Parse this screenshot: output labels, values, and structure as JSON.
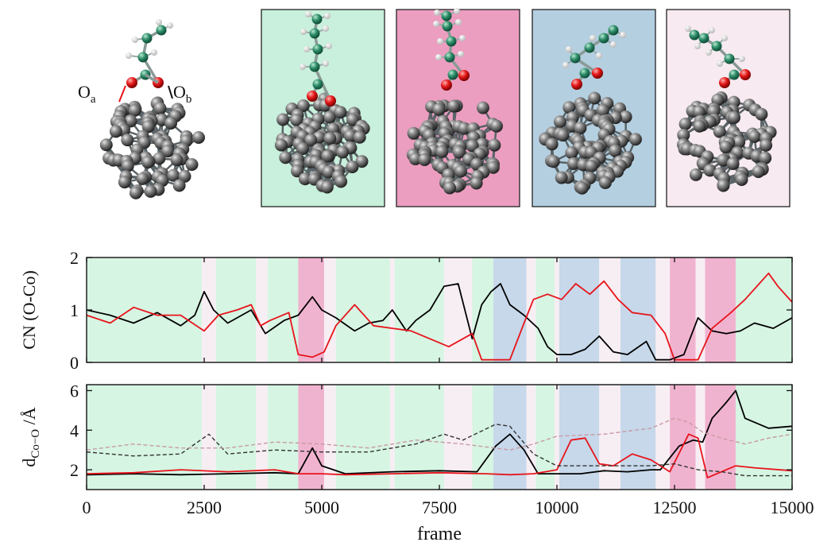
{
  "labels": {
    "oa": "O",
    "oa_sub": "a",
    "ob": "O",
    "ob_sub": "b"
  },
  "panel_colors": [
    "#c8f0dc",
    "#ec9ec0",
    "#b4cfe0",
    "#f7eaf0"
  ],
  "state_colors": {
    "green": "#d6f5e3",
    "white": "#f7eef3",
    "pink": "#f0b3cf",
    "blue": "#c6d8ea"
  },
  "state_bands": [
    {
      "from": 0,
      "to": 2450,
      "state": "green"
    },
    {
      "from": 2450,
      "to": 2750,
      "state": "white"
    },
    {
      "from": 2750,
      "to": 3600,
      "state": "green"
    },
    {
      "from": 3600,
      "to": 3850,
      "state": "white"
    },
    {
      "from": 3850,
      "to": 4500,
      "state": "green"
    },
    {
      "from": 4500,
      "to": 5050,
      "state": "pink"
    },
    {
      "from": 5050,
      "to": 5300,
      "state": "white"
    },
    {
      "from": 5300,
      "to": 6450,
      "state": "green"
    },
    {
      "from": 6450,
      "to": 6550,
      "state": "white"
    },
    {
      "from": 6550,
      "to": 7600,
      "state": "green"
    },
    {
      "from": 7600,
      "to": 8200,
      "state": "white"
    },
    {
      "from": 8200,
      "to": 8650,
      "state": "green"
    },
    {
      "from": 8650,
      "to": 9350,
      "state": "blue"
    },
    {
      "from": 9350,
      "to": 9550,
      "state": "white"
    },
    {
      "from": 9550,
      "to": 9950,
      "state": "green"
    },
    {
      "from": 9950,
      "to": 10050,
      "state": "white"
    },
    {
      "from": 10050,
      "to": 10900,
      "state": "blue"
    },
    {
      "from": 10900,
      "to": 11350,
      "state": "white"
    },
    {
      "from": 11350,
      "to": 12100,
      "state": "blue"
    },
    {
      "from": 12100,
      "to": 12400,
      "state": "white"
    },
    {
      "from": 12400,
      "to": 12950,
      "state": "pink"
    },
    {
      "from": 12950,
      "to": 13150,
      "state": "white"
    },
    {
      "from": 13150,
      "to": 13800,
      "state": "pink"
    },
    {
      "from": 13800,
      "to": 15000,
      "state": "green"
    }
  ],
  "chart_data": [
    {
      "type": "line",
      "ylabel": "CN (O-Co)",
      "xlim": [
        0,
        15000
      ],
      "ylim": [
        0,
        2
      ],
      "yticks": [
        "0",
        "1",
        "2"
      ],
      "series": [
        {
          "color": "#000000",
          "x": [
            0,
            500,
            1000,
            1500,
            2000,
            2300,
            2500,
            2700,
            3000,
            3500,
            3800,
            4200,
            4500,
            4800,
            5000,
            5300,
            5700,
            6000,
            6300,
            6500,
            6800,
            7000,
            7300,
            7600,
            7900,
            8200,
            8400,
            8600,
            8800,
            9000,
            9300,
            9600,
            9800,
            10000,
            10300,
            10600,
            10900,
            11200,
            11500,
            11900,
            12100,
            12400,
            12700,
            13000,
            13300,
            13600,
            13900,
            14200,
            14600,
            15000
          ],
          "y": [
            1.0,
            0.9,
            0.75,
            0.95,
            0.7,
            0.9,
            1.35,
            1.0,
            0.75,
            1.0,
            0.55,
            0.8,
            0.9,
            1.25,
            1.0,
            0.85,
            0.6,
            0.75,
            0.8,
            1.0,
            0.6,
            0.8,
            1.0,
            1.45,
            1.5,
            0.45,
            1.1,
            1.35,
            1.5,
            1.1,
            0.9,
            0.65,
            0.3,
            0.15,
            0.15,
            0.25,
            0.5,
            0.2,
            0.15,
            0.4,
            0.05,
            0.05,
            0.15,
            0.85,
            0.6,
            0.55,
            0.6,
            0.75,
            0.65,
            0.85
          ]
        },
        {
          "color": "#e8141b",
          "x": [
            0,
            500,
            1000,
            1500,
            2000,
            2500,
            2800,
            3200,
            3500,
            3700,
            3900,
            4300,
            4500,
            4800,
            5050,
            5300,
            5700,
            6100,
            6500,
            6900,
            7300,
            7700,
            8000,
            8200,
            8400,
            8700,
            9000,
            9300,
            9500,
            9800,
            10100,
            10400,
            10700,
            11000,
            11300,
            11600,
            12000,
            12300,
            12500,
            12800,
            13000,
            13300,
            13700,
            14000,
            14300,
            14500,
            14700,
            15000
          ],
          "y": [
            0.9,
            0.75,
            1.05,
            0.9,
            0.9,
            0.6,
            0.9,
            1.0,
            1.1,
            0.7,
            0.8,
            0.95,
            0.15,
            0.1,
            0.2,
            0.7,
            1.1,
            0.7,
            0.65,
            0.6,
            0.45,
            0.3,
            0.45,
            0.55,
            0.05,
            0.05,
            0.05,
            0.75,
            1.2,
            1.3,
            1.2,
            1.5,
            1.3,
            1.55,
            1.2,
            0.95,
            0.9,
            0.55,
            0.05,
            0.05,
            0.05,
            0.65,
            0.95,
            1.2,
            1.5,
            1.7,
            1.45,
            1.15
          ]
        }
      ]
    },
    {
      "type": "line",
      "ylabel": "d",
      "ylabel_sub": "Co−O",
      "ylabel_tail": " /Å",
      "xlabel": "frame",
      "xlim": [
        0,
        15000
      ],
      "ylim": [
        1,
        6.3
      ],
      "xticks": [
        "0",
        "2500",
        "5000",
        "7500",
        "10000",
        "12500",
        "15000"
      ],
      "yticks": [
        "2",
        "4",
        "6"
      ],
      "series": [
        {
          "color": "#000000",
          "x": [
            0,
            1000,
            2000,
            3000,
            4000,
            4500,
            4800,
            5000,
            5500,
            6500,
            7500,
            8300,
            8700,
            9000,
            9300,
            9600,
            10000,
            10500,
            11000,
            11500,
            12000,
            12200,
            12600,
            12900,
            13100,
            13300,
            13600,
            13800,
            14000,
            14500,
            15000
          ],
          "y": [
            1.75,
            1.8,
            1.75,
            1.8,
            1.85,
            1.8,
            3.1,
            2.2,
            1.8,
            1.9,
            1.95,
            1.9,
            3.2,
            3.8,
            3.0,
            1.8,
            1.8,
            1.8,
            1.95,
            1.9,
            2.0,
            2.0,
            3.2,
            3.5,
            3.4,
            4.6,
            5.4,
            6.0,
            4.6,
            4.1,
            4.2
          ]
        },
        {
          "color": "#e8141b",
          "x": [
            0,
            1000,
            2000,
            3000,
            4000,
            4500,
            5000,
            5500,
            6500,
            7500,
            8500,
            9000,
            9500,
            10000,
            10300,
            10600,
            10900,
            11200,
            11600,
            12000,
            12400,
            12800,
            13000,
            13200,
            13800,
            14200,
            15000
          ],
          "y": [
            1.8,
            1.85,
            2.0,
            1.9,
            2.0,
            1.8,
            1.8,
            1.75,
            1.8,
            1.85,
            1.8,
            1.75,
            1.8,
            2.0,
            3.5,
            3.6,
            2.3,
            2.2,
            2.8,
            2.5,
            1.9,
            3.8,
            3.6,
            1.6,
            2.2,
            2.1,
            1.95
          ]
        },
        {
          "color": "#333333",
          "dashed": true,
          "x": [
            0,
            1000,
            2000,
            2600,
            3000,
            4000,
            5000,
            6000,
            7000,
            7600,
            8000,
            8700,
            9000,
            9500,
            10000,
            11000,
            12000,
            12500,
            13000,
            13500,
            14000,
            15000
          ],
          "y": [
            2.9,
            2.7,
            2.8,
            3.8,
            2.8,
            3.0,
            2.9,
            2.9,
            3.3,
            3.8,
            3.5,
            4.3,
            4.2,
            2.8,
            2.2,
            2.2,
            2.2,
            2.3,
            2.0,
            1.9,
            1.7,
            1.7
          ]
        },
        {
          "color": "#c89aa4",
          "dashed": true,
          "x": [
            0,
            1000,
            2000,
            3000,
            4000,
            5000,
            6000,
            7000,
            8000,
            9000,
            9500,
            10000,
            11000,
            12000,
            12500,
            12800,
            13100,
            13500,
            14000,
            14500,
            15000
          ],
          "y": [
            3.0,
            3.3,
            3.1,
            3.1,
            3.4,
            3.3,
            3.1,
            3.5,
            3.3,
            3.0,
            3.3,
            3.7,
            3.8,
            4.1,
            4.6,
            4.4,
            3.9,
            3.6,
            3.3,
            3.6,
            3.8
          ]
        }
      ]
    }
  ]
}
